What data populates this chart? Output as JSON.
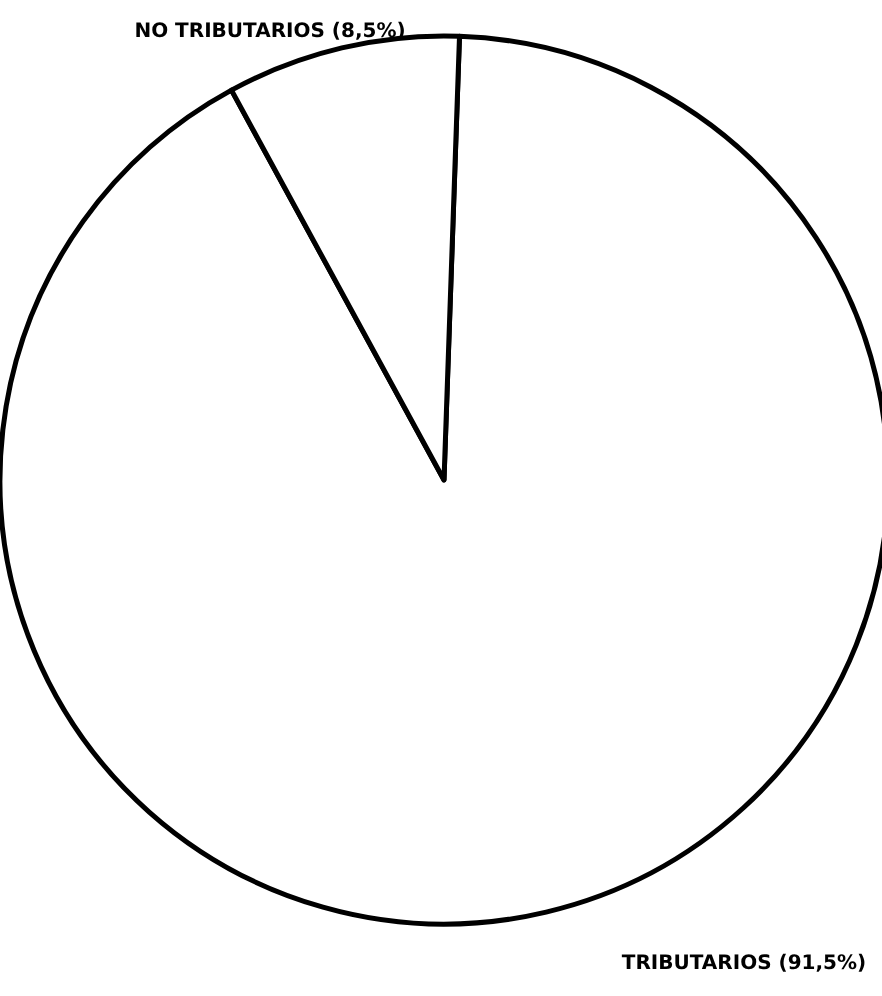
{
  "chart_data": {
    "type": "pie",
    "categories": [
      "TRIBUTARIOS",
      "NO TRIBUTARIOS"
    ],
    "values": [
      91.5,
      8.5
    ],
    "colors": [
      "#ffffff",
      "#ffffff"
    ],
    "value_labels": [
      "(91,5%)",
      "(8,5%)"
    ],
    "legend": false
  }
}
